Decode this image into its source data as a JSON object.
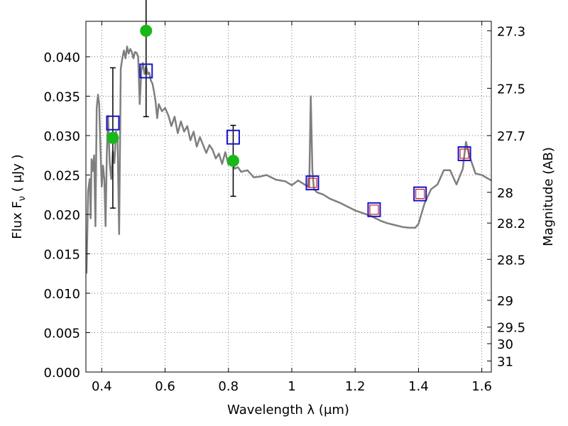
{
  "chart_data": {
    "type": "line",
    "xlabel": "Wavelength  λ (μm)",
    "ylabel_prefix": "Flux  F",
    "ylabel_sub": "ν",
    "ylabel_suffix": "  ( μJy )",
    "y2label": "Magnitude (AB)",
    "xlim": [
      0.35,
      1.63
    ],
    "ylim": [
      0.0,
      0.0445
    ],
    "grid": true,
    "x_ticks": [
      0.4,
      0.6,
      0.8,
      1.0,
      1.2,
      1.4,
      1.6
    ],
    "x_tick_labels": [
      "0.4",
      "0.6",
      "0.8",
      "1",
      "1.2",
      "1.4",
      "1.6"
    ],
    "y_ticks": [
      0.0,
      0.005,
      0.01,
      0.015,
      0.02,
      0.025,
      0.03,
      0.035,
      0.04
    ],
    "y_tick_labels": [
      "0.000",
      "0.005",
      "0.010",
      "0.015",
      "0.020",
      "0.025",
      "0.030",
      "0.035",
      "0.040"
    ],
    "y2_ticks": [
      {
        "label": "27.3",
        "flux": 0.0433
      },
      {
        "label": "27.5",
        "flux": 0.036
      },
      {
        "label": "27.7",
        "flux": 0.03
      },
      {
        "label": "28",
        "flux": 0.0228
      },
      {
        "label": "28.2",
        "flux": 0.0189
      },
      {
        "label": "28.5",
        "flux": 0.0143
      },
      {
        "label": "29",
        "flux": 0.0091
      },
      {
        "label": "29.5",
        "flux": 0.0057
      },
      {
        "label": "30",
        "flux": 0.0036
      },
      {
        "label": "31",
        "flux": 0.0014
      }
    ],
    "series": [
      {
        "kind": "sed-model",
        "color": "#7f7f7f",
        "x": [
          0.352,
          0.357,
          0.362,
          0.365,
          0.368,
          0.372,
          0.376,
          0.38,
          0.384,
          0.388,
          0.392,
          0.395,
          0.4,
          0.404,
          0.408,
          0.412,
          0.416,
          0.42,
          0.425,
          0.43,
          0.435,
          0.44,
          0.445,
          0.45,
          0.455,
          0.46,
          0.465,
          0.47,
          0.475,
          0.48,
          0.485,
          0.49,
          0.495,
          0.5,
          0.505,
          0.51,
          0.515,
          0.52,
          0.525,
          0.53,
          0.535,
          0.54,
          0.545,
          0.55,
          0.555,
          0.56,
          0.565,
          0.57,
          0.575,
          0.58,
          0.59,
          0.6,
          0.61,
          0.62,
          0.63,
          0.64,
          0.65,
          0.66,
          0.67,
          0.68,
          0.69,
          0.7,
          0.71,
          0.72,
          0.73,
          0.74,
          0.75,
          0.76,
          0.77,
          0.78,
          0.79,
          0.8,
          0.81,
          0.82,
          0.83,
          0.84,
          0.86,
          0.88,
          0.9,
          0.92,
          0.95,
          0.98,
          1.0,
          1.02,
          1.04,
          1.055,
          1.06,
          1.065,
          1.07,
          1.08,
          1.1,
          1.12,
          1.15,
          1.2,
          1.25,
          1.28,
          1.3,
          1.33,
          1.35,
          1.37,
          1.39,
          1.4,
          1.42,
          1.44,
          1.46,
          1.48,
          1.5,
          1.52,
          1.54,
          1.545,
          1.55,
          1.56,
          1.58,
          1.6,
          1.63
        ],
        "y": [
          0.0125,
          0.023,
          0.0245,
          0.0195,
          0.027,
          0.0255,
          0.0275,
          0.0185,
          0.0335,
          0.0352,
          0.034,
          0.0295,
          0.0235,
          0.0262,
          0.0245,
          0.0185,
          0.0275,
          0.0325,
          0.0265,
          0.0245,
          0.028,
          0.0265,
          0.0305,
          0.0295,
          0.0175,
          0.0385,
          0.0398,
          0.0408,
          0.0398,
          0.0413,
          0.0404,
          0.041,
          0.0406,
          0.0398,
          0.0406,
          0.0405,
          0.04,
          0.034,
          0.0383,
          0.0392,
          0.0378,
          0.0388,
          0.0378,
          0.038,
          0.037,
          0.0366,
          0.0356,
          0.0343,
          0.0322,
          0.034,
          0.0331,
          0.0335,
          0.0326,
          0.0312,
          0.0324,
          0.0303,
          0.0318,
          0.0305,
          0.0312,
          0.0294,
          0.0305,
          0.0286,
          0.0298,
          0.0288,
          0.0278,
          0.0288,
          0.0282,
          0.0271,
          0.0277,
          0.0264,
          0.0279,
          0.0263,
          0.027,
          0.0258,
          0.026,
          0.0254,
          0.0256,
          0.0247,
          0.0248,
          0.025,
          0.0244,
          0.0242,
          0.0237,
          0.0243,
          0.0238,
          0.0235,
          0.035,
          0.0255,
          0.0232,
          0.0228,
          0.0225,
          0.022,
          0.0215,
          0.0205,
          0.0198,
          0.0192,
          0.0189,
          0.0186,
          0.0184,
          0.0183,
          0.0183,
          0.0188,
          0.0215,
          0.0232,
          0.0238,
          0.0256,
          0.0256,
          0.0238,
          0.0258,
          0.0276,
          0.0292,
          0.0275,
          0.0252,
          0.025,
          0.0243
        ]
      },
      {
        "kind": "observed-flux",
        "color": "#18b818",
        "x": [
          0.435,
          0.54,
          0.815
        ],
        "y": [
          0.0297,
          0.0433,
          0.0268
        ],
        "yerr": [
          0.0089,
          0.0109,
          0.0045
        ]
      },
      {
        "kind": "model-bandpass-flux",
        "color": "#1515cc",
        "x": [
          0.435,
          0.54,
          0.815,
          1.065,
          1.26,
          1.405,
          1.545
        ],
        "y": [
          0.0316,
          0.0382,
          0.0298,
          0.024,
          0.0206,
          0.0226,
          0.0277
        ]
      },
      {
        "kind": "synthetic-flux",
        "color": "#cc2222",
        "x": [
          1.065,
          1.26,
          1.405,
          1.545
        ],
        "y": [
          0.024,
          0.0206,
          0.0226,
          0.0277
        ]
      }
    ]
  }
}
